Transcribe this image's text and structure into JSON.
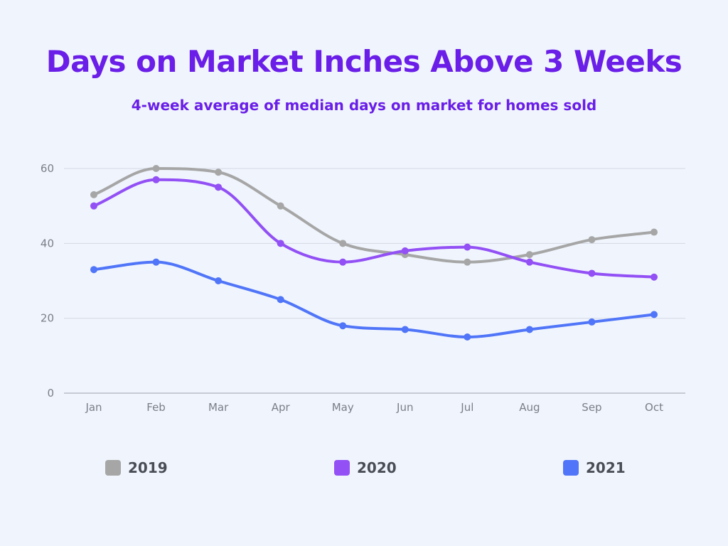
{
  "title": "Days on Market Inches Above 3 Weeks",
  "subtitle": "4-week average of median days on market for homes sold",
  "chart_data": {
    "type": "line",
    "title": "Days on Market Inches Above 3 Weeks",
    "subtitle": "4-week average of median days on market for homes sold",
    "categories": [
      "Jan",
      "Feb",
      "Mar",
      "Apr",
      "May",
      "Jun",
      "Jul",
      "Aug",
      "Sep",
      "Oct"
    ],
    "ylim": [
      0,
      60
    ],
    "yticks": [
      0,
      20,
      40,
      60
    ],
    "grid": true,
    "legend_position": "bottom",
    "series": [
      {
        "name": "2019",
        "color": "#a6a6a6",
        "values": [
          53,
          60,
          59,
          50,
          40,
          37,
          35,
          37,
          41,
          43
        ]
      },
      {
        "name": "2020",
        "color": "#9250f5",
        "values": [
          50,
          57,
          55,
          40,
          35,
          38,
          39,
          35,
          32,
          31
        ]
      },
      {
        "name": "2021",
        "color": "#5075f8",
        "values": [
          33,
          35,
          30,
          25,
          18,
          17,
          15,
          17,
          19,
          21
        ]
      }
    ]
  },
  "colors": {
    "title": "#6a1ee8",
    "background": "#f0f5fd",
    "grid": "#d2d7e2",
    "axis": "#9aa0aa"
  }
}
